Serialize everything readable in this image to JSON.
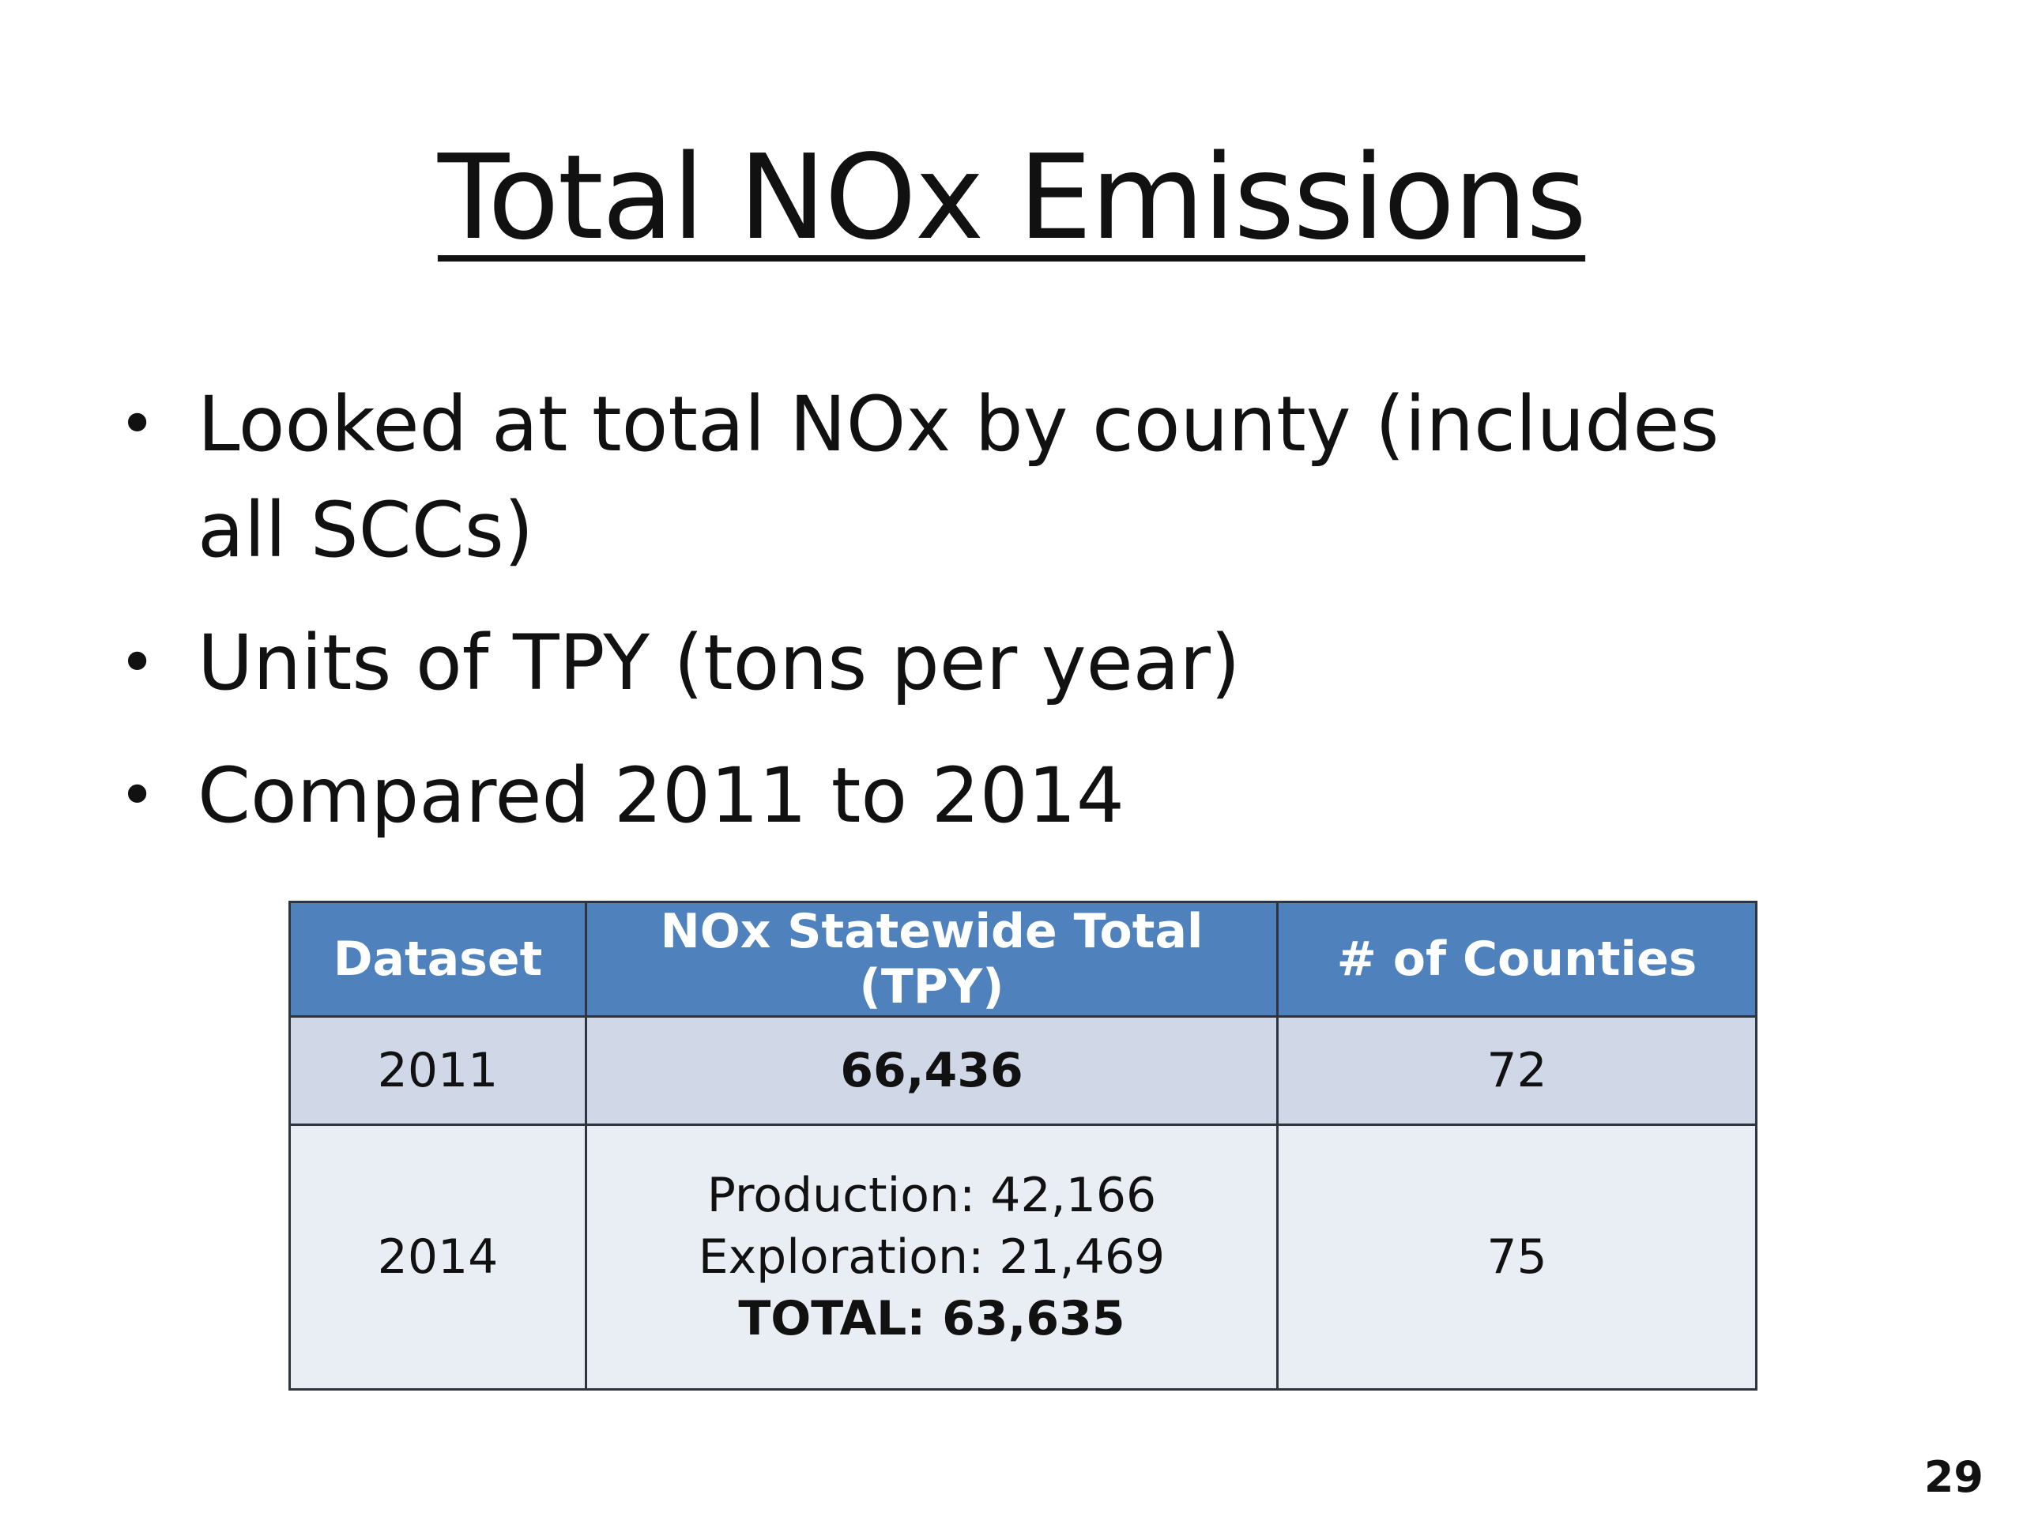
{
  "title": "Total NOx Emissions",
  "bullets": [
    "Looked at total NOx by county (includes all SCCs)",
    "Units of TPY (tons per year)",
    "Compared 2011 to 2014"
  ],
  "table": {
    "headers": [
      "Dataset",
      "NOx Statewide Total (TPY)",
      "# of Counties"
    ],
    "rows": [
      {
        "dataset": "2011",
        "total": "66,436",
        "counties": "72"
      },
      {
        "dataset": "2014",
        "production": "Production: 42,166",
        "exploration": "Exploration: 21,469",
        "total": "TOTAL: 63,635",
        "counties": "75"
      }
    ]
  },
  "page_number": "29"
}
